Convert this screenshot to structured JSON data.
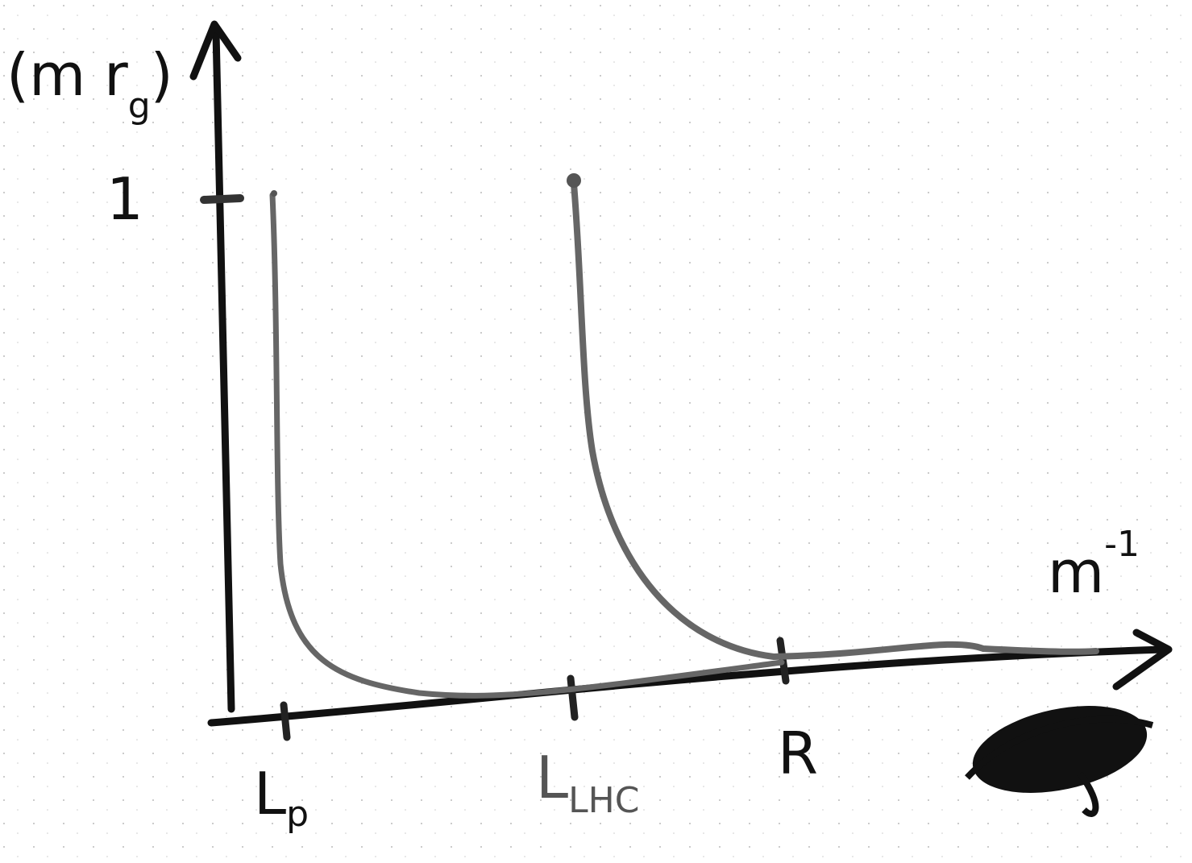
{
  "y_axis": {
    "label": {
      "open": "(m r",
      "sub": "g",
      "close": ")"
    },
    "tick": "1"
  },
  "x_axis": {
    "label": {
      "base": "m",
      "sup": "-1"
    },
    "ticks": [
      {
        "text": "L",
        "sub": "p"
      },
      {
        "text": "L",
        "sub": "LHC"
      },
      {
        "text": "R"
      }
    ]
  }
}
